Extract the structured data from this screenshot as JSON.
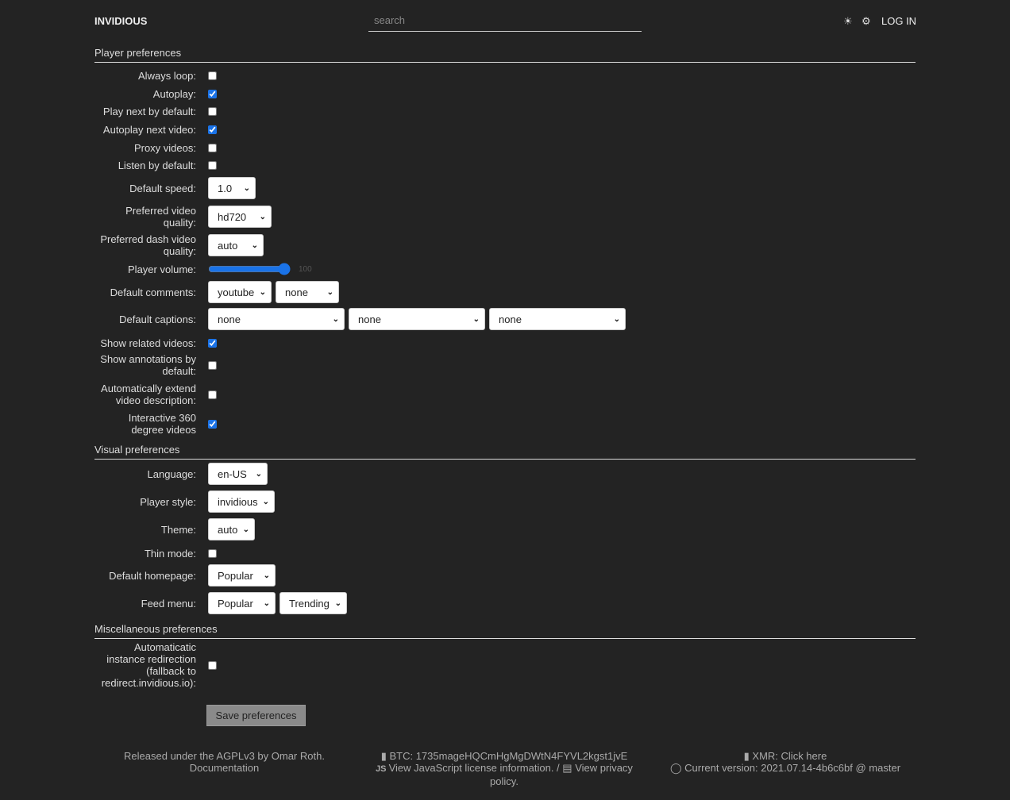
{
  "header": {
    "brand": "INVIDIOUS",
    "search_placeholder": "search",
    "theme_icon": "☀",
    "prefs_icon": "⚙",
    "login": "LOG IN"
  },
  "sections": [
    {
      "title": "Player preferences",
      "rows": [
        {
          "label": "Always loop:",
          "type": "checkbox",
          "checked": false
        },
        {
          "label": "Autoplay:",
          "type": "checkbox",
          "checked": true
        },
        {
          "label": "Play next by default:",
          "type": "checkbox",
          "checked": false
        },
        {
          "label": "Autoplay next video:",
          "type": "checkbox",
          "checked": true
        },
        {
          "label": "Proxy videos:",
          "type": "checkbox",
          "checked": false
        },
        {
          "label": "Listen by default:",
          "type": "checkbox",
          "checked": false
        },
        {
          "label": "Default speed:",
          "type": "select",
          "values": [
            "1.0"
          ]
        },
        {
          "label": "Preferred video quality:",
          "type": "select",
          "values": [
            "hd720"
          ]
        },
        {
          "label": "Preferred dash video quality:",
          "type": "select",
          "values": [
            "auto"
          ]
        },
        {
          "label": "Player volume:",
          "type": "range",
          "value": 100
        },
        {
          "label": "Default comments:",
          "type": "select",
          "values": [
            "youtube",
            "none"
          ]
        },
        {
          "label": "Default captions:",
          "type": "select",
          "values": [
            "none",
            "none",
            "none"
          ]
        },
        {
          "label": "Show related videos:",
          "type": "checkbox",
          "checked": true
        },
        {
          "label": "Show annotations by default:",
          "type": "checkbox",
          "checked": false
        },
        {
          "label": "Automatically extend video description:",
          "type": "checkbox",
          "checked": false
        },
        {
          "label": "Interactive 360 degree videos",
          "type": "checkbox",
          "checked": true
        }
      ]
    },
    {
      "title": "Visual preferences",
      "rows": [
        {
          "label": "Language:",
          "type": "select",
          "values": [
            "en-US"
          ]
        },
        {
          "label": "Player style:",
          "type": "select",
          "values": [
            "invidious"
          ]
        },
        {
          "label": "Theme:",
          "type": "select",
          "values": [
            "auto"
          ]
        },
        {
          "label": "Thin mode:",
          "type": "checkbox",
          "checked": false
        },
        {
          "label": "Default homepage:",
          "type": "select",
          "values": [
            "Popular"
          ]
        },
        {
          "label": "Feed menu:",
          "type": "select",
          "values": [
            "Popular",
            "Trending"
          ]
        }
      ]
    },
    {
      "title": "Miscellaneous preferences",
      "rows": [
        {
          "label": "Automaticatic instance redirection (fallback to redirect.invidious.io):",
          "type": "checkbox",
          "checked": false
        }
      ]
    }
  ],
  "save_label": "Save preferences",
  "footer": {
    "left": {
      "license": "Released under the AGPLv3 by Omar Roth.",
      "docs": "Documentation"
    },
    "middle": {
      "btc": "BTC: 1735mageHQCmHgMgDWtN4FYVL2kgst1jvE",
      "js_license": "View JavaScript license information.",
      "separator": " / ",
      "privacy": "View privacy policy."
    },
    "right": {
      "xmr": "XMR: Click here",
      "version": "Current version: 2021.07.14-4b6c6bf @ master"
    }
  }
}
